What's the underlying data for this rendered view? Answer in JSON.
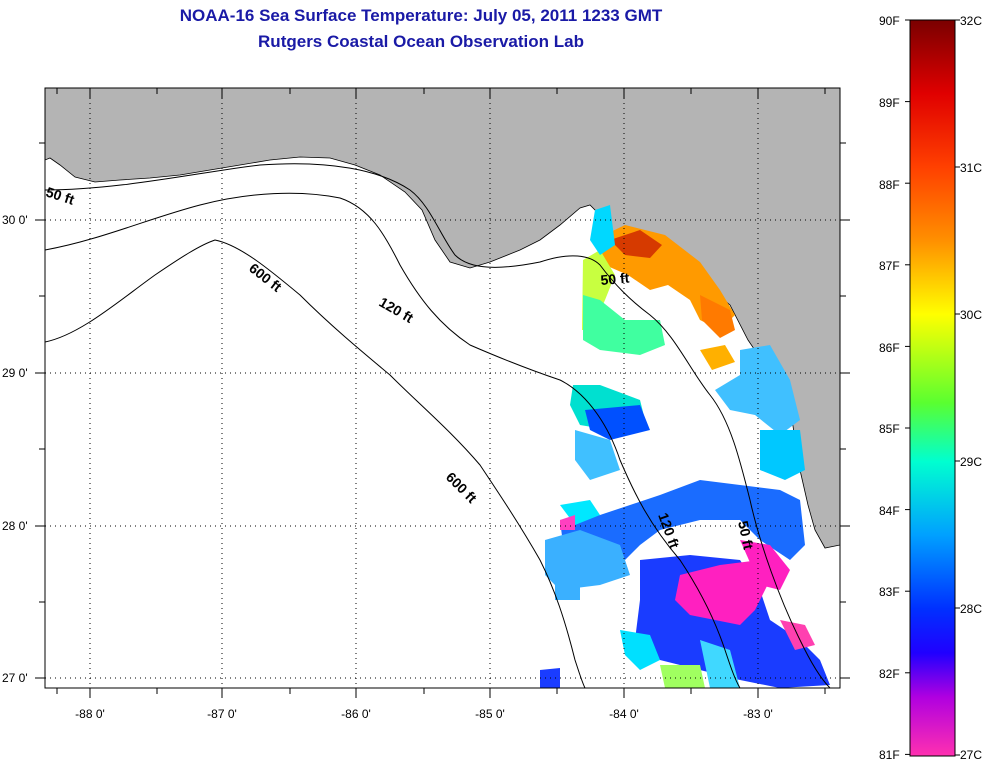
{
  "title": {
    "line1": "NOAA-16 Sea Surface Temperature:  July 05, 2011 1233 GMT",
    "line2": "Rutgers Coastal Ocean Observation Lab"
  },
  "map": {
    "land_color": "#b4b4b4",
    "ocean_color": "#ffffff",
    "lon_ticks": [
      "-88 0'",
      "-87 0'",
      "-86 0'",
      "-85 0'",
      "-84 0'",
      "-83 0'"
    ],
    "lat_ticks": [
      "30 0'",
      "29 0'",
      "28 0'",
      "27 0'"
    ],
    "contour_labels": {
      "c50_west": "50 ft",
      "c600_north": "600 ft",
      "c120_north": "120 ft",
      "c600_south": "600 ft",
      "c50_east": "50 ft",
      "c120_south": "120 ft",
      "c50_south": "50 ft"
    }
  },
  "colorbar": {
    "fahrenheit": [
      "90F",
      "89F",
      "88F",
      "87F",
      "86F",
      "85F",
      "84F",
      "83F",
      "82F",
      "81F"
    ],
    "celsius": [
      "32C",
      "31C",
      "30C",
      "29C",
      "28C",
      "27C"
    ],
    "colors": [
      "#7a0000",
      "#ff0000",
      "#ff8c00",
      "#ffff00",
      "#7cff00",
      "#00ffcc",
      "#00bfff",
      "#0040ff",
      "#2a00ff",
      "#8020cc",
      "#ff00ff",
      "#ff30b0"
    ]
  }
}
